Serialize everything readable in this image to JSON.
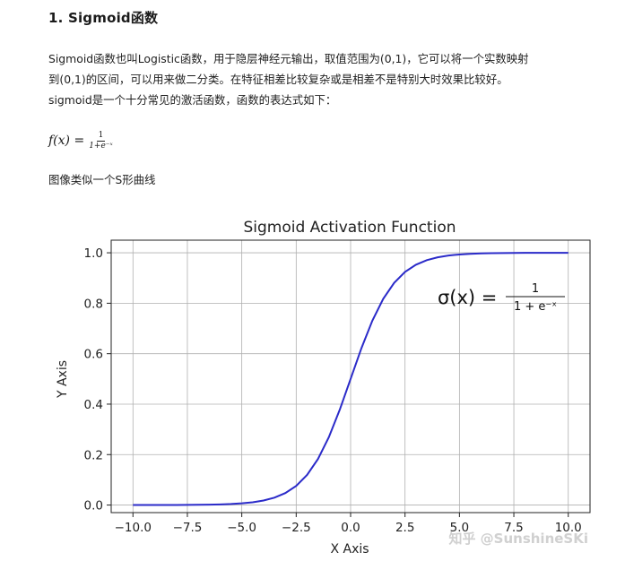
{
  "heading": "1. Sigmoid函数",
  "paragraph": {
    "line1": "Sigmoid函数也叫Logistic函数，用于隐层神经元输出，取值范围为(0,1)，它可以将一个实数映射",
    "line2": "到(0,1)的区间，可以用来做二分类。在特征相差比较复杂或是相差不是特别大时效果比较好。",
    "line3": "sigmoid是一个十分常见的激活函数，函数的表达式如下："
  },
  "formula": {
    "lhs": "f(x) =",
    "numerator": "1",
    "denominator": "1+e⁻ˣ"
  },
  "caption": "图像类似一个S形曲线",
  "chart_data": {
    "type": "line",
    "title": "Sigmoid Activation Function",
    "xlabel": "X Axis",
    "ylabel": "Y Axis",
    "xlim": [
      -11,
      11
    ],
    "ylim": [
      -0.03,
      1.05
    ],
    "xticks": [
      -10,
      -7.5,
      -5,
      -2.5,
      0,
      2.5,
      5,
      7.5,
      10
    ],
    "xtick_labels": [
      "−10.0",
      "−7.5",
      "−5.0",
      "−2.5",
      "0.0",
      "2.5",
      "5.0",
      "7.5",
      "10.0"
    ],
    "yticks": [
      0,
      0.2,
      0.4,
      0.6,
      0.8,
      1.0
    ],
    "ytick_labels": [
      "0.0",
      "0.2",
      "0.4",
      "0.6",
      "0.8",
      "1.0"
    ],
    "grid": true,
    "series": [
      {
        "color": "#2b2bc9",
        "x": [
          -10,
          -9.5,
          -9,
          -8.5,
          -8,
          -7.5,
          -7,
          -6.5,
          -6,
          -5.5,
          -5,
          -4.5,
          -4,
          -3.5,
          -3,
          -2.5,
          -2,
          -1.5,
          -1,
          -0.5,
          0,
          0.5,
          1,
          1.5,
          2,
          2.5,
          3,
          3.5,
          4,
          4.5,
          5,
          5.5,
          6,
          6.5,
          7,
          7.5,
          8,
          8.5,
          9,
          9.5,
          10
        ],
        "y": [
          0.0,
          0.0001,
          0.0001,
          0.0002,
          0.0003,
          0.0006,
          0.0009,
          0.0015,
          0.0025,
          0.0041,
          0.0067,
          0.011,
          0.018,
          0.0293,
          0.0474,
          0.0759,
          0.1192,
          0.1824,
          0.2689,
          0.3775,
          0.5,
          0.6225,
          0.7311,
          0.8176,
          0.8808,
          0.9241,
          0.9526,
          0.9707,
          0.982,
          0.989,
          0.9933,
          0.9959,
          0.9975,
          0.9985,
          0.9991,
          0.9994,
          0.9997,
          0.9998,
          0.9999,
          0.9999,
          1.0
        ]
      }
    ],
    "annotation": {
      "lhs": "σ(x) =",
      "numerator": "1",
      "denominator": "1 + e⁻ˣ"
    }
  },
  "watermark": "知乎 @SunshineSKi"
}
